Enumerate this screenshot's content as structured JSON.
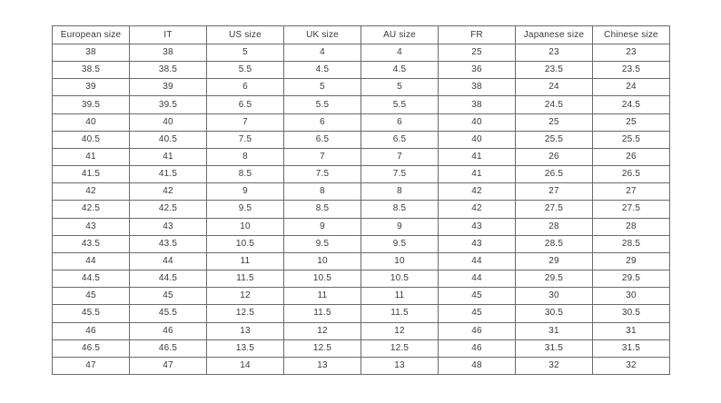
{
  "colors": {
    "background": "#ffffff",
    "table_border": "#6b6b6b",
    "text": "#3a3a3a"
  },
  "table": {
    "name": "shoe-size-conversion-table",
    "headers": [
      "European size",
      "IT",
      "US size",
      "UK size",
      "AU size",
      "FR",
      "Japanese size",
      "Chinese size"
    ],
    "rows": [
      [
        "38",
        "38",
        "5",
        "4",
        "4",
        "25",
        "23",
        "23"
      ],
      [
        "38.5",
        "38.5",
        "5.5",
        "4.5",
        "4.5",
        "36",
        "23.5",
        "23.5"
      ],
      [
        "39",
        "39",
        "6",
        "5",
        "5",
        "38",
        "24",
        "24"
      ],
      [
        "39.5",
        "39.5",
        "6.5",
        "5.5",
        "5.5",
        "38",
        "24.5",
        "24.5"
      ],
      [
        "40",
        "40",
        "7",
        "6",
        "6",
        "40",
        "25",
        "25"
      ],
      [
        "40.5",
        "40.5",
        "7.5",
        "6.5",
        "6.5",
        "40",
        "25.5",
        "25.5"
      ],
      [
        "41",
        "41",
        "8",
        "7",
        "7",
        "41",
        "26",
        "26"
      ],
      [
        "41.5",
        "41.5",
        "8.5",
        "7.5",
        "7.5",
        "41",
        "26.5",
        "26.5"
      ],
      [
        "42",
        "42",
        "9",
        "8",
        "8",
        "42",
        "27",
        "27"
      ],
      [
        "42.5",
        "42.5",
        "9.5",
        "8.5",
        "8.5",
        "42",
        "27.5",
        "27.5"
      ],
      [
        "43",
        "43",
        "10",
        "9",
        "9",
        "43",
        "28",
        "28"
      ],
      [
        "43.5",
        "43.5",
        "10.5",
        "9.5",
        "9.5",
        "43",
        "28.5",
        "28.5"
      ],
      [
        "44",
        "44",
        "11",
        "10",
        "10",
        "44",
        "29",
        "29"
      ],
      [
        "44.5",
        "44.5",
        "11.5",
        "10.5",
        "10.5",
        "44",
        "29.5",
        "29.5"
      ],
      [
        "45",
        "45",
        "12",
        "11",
        "11",
        "45",
        "30",
        "30"
      ],
      [
        "45.5",
        "45.5",
        "12.5",
        "11.5",
        "11.5",
        "45",
        "30.5",
        "30.5"
      ],
      [
        "46",
        "46",
        "13",
        "12",
        "12",
        "46",
        "31",
        "31"
      ],
      [
        "46.5",
        "46.5",
        "13.5",
        "12.5",
        "12.5",
        "46",
        "31.5",
        "31.5"
      ],
      [
        "47",
        "47",
        "14",
        "13",
        "13",
        "48",
        "32",
        "32"
      ]
    ]
  }
}
